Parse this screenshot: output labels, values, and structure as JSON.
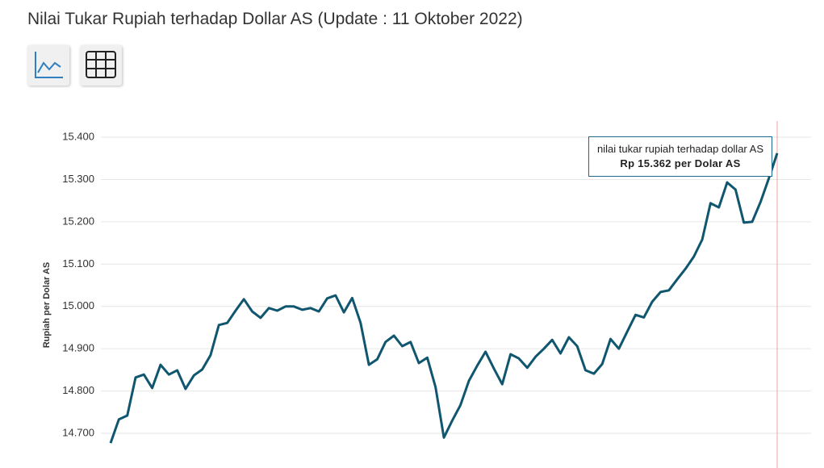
{
  "chart_data": {
    "type": "line",
    "title": "Nilai Tukar Rupiah terhadap Dollar AS (Update : 11 Oktober 2022)",
    "y_label": "Rupiah per Dolar AS",
    "color": "#0f566e",
    "grid": true,
    "ylim": [
      14620,
      15450
    ],
    "yticks": [
      {
        "value": 14700,
        "label": "14.700"
      },
      {
        "value": 14800,
        "label": "14.800"
      },
      {
        "value": 14900,
        "label": "14.900"
      },
      {
        "value": 15000,
        "label": "15.000"
      },
      {
        "value": 15100,
        "label": "15.100"
      },
      {
        "value": 15200,
        "label": "15.200"
      },
      {
        "value": 15300,
        "label": "15.300"
      },
      {
        "value": 15400,
        "label": "15.400"
      }
    ],
    "values": [
      14677,
      14733,
      14742,
      14832,
      14839,
      14807,
      14862,
      14839,
      14849,
      14805,
      14837,
      14851,
      14885,
      14956,
      14961,
      14990,
      15017,
      14988,
      14973,
      14996,
      14990,
      15000,
      15000,
      14992,
      14996,
      14988,
      15019,
      15026,
      14986,
      15020,
      14961,
      14862,
      14875,
      14916,
      14931,
      14906,
      14916,
      14866,
      14879,
      14809,
      14690,
      14730,
      14767,
      14824,
      14860,
      14893,
      14853,
      14816,
      14887,
      14877,
      14855,
      14881,
      14900,
      14921,
      14889,
      14927,
      14906,
      14849,
      14841,
      14864,
      14923,
      14900,
      14940,
      14980,
      14974,
      15011,
      15034,
      15038,
      15064,
      15089,
      15118,
      15158,
      15244,
      15234,
      15293,
      15276,
      15198,
      15200,
      15247,
      15303,
      15362
    ],
    "tooltip": {
      "title": "nilai tukar rupiah terhadap dollar AS",
      "text": "Rp 15.362 per Dolar AS"
    }
  }
}
